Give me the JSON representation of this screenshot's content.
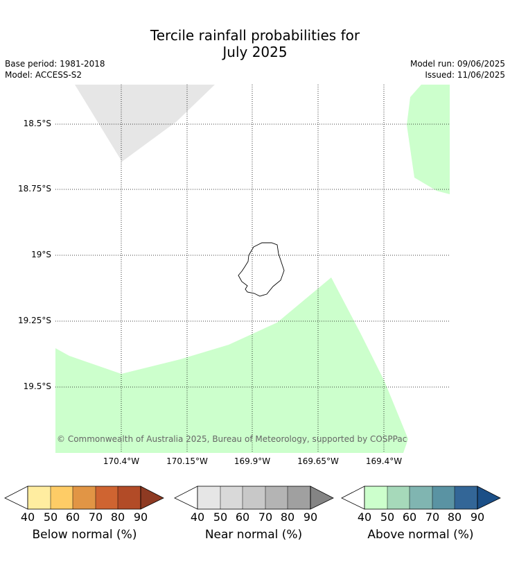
{
  "title": {
    "line1": "Tercile rainfall probabilities for",
    "line2": "July 2025"
  },
  "meta": {
    "base_period": "Base period: 1981-2018",
    "model": "Model: ACCESS-S2",
    "model_run": "Model run: 09/06/2025",
    "issued": "Issued: 11/06/2025"
  },
  "map": {
    "lat_labels": [
      "18.5°S",
      "18.75°S",
      "19°S",
      "19.25°S",
      "19.5°S"
    ],
    "lon_labels": [
      "170.4°W",
      "170.15°W",
      "169.9°W",
      "169.65°W",
      "169.4°W"
    ],
    "copyright": "© Commonwealth of Australia 2025, Bureau of Meteorology, supported by COSPPac",
    "colors": {
      "above_normal_region": "#ccffcc",
      "near_normal_region": "#e6e6e6",
      "grid": "#000000",
      "background": "#ffffff"
    }
  },
  "colorbars": [
    {
      "label": "Below normal (%)",
      "ticks": [
        "40",
        "50",
        "60",
        "70",
        "80",
        "90"
      ],
      "colors": [
        "#ffffff",
        "#ffeda0",
        "#fecc66",
        "#e19545",
        "#cf6431",
        "#b24b27",
        "#8e3a22"
      ]
    },
    {
      "label": "Near normal (%)",
      "ticks": [
        "40",
        "50",
        "60",
        "70",
        "80",
        "90"
      ],
      "colors": [
        "#ffffff",
        "#e6e6e6",
        "#d9d9d9",
        "#c8c8c8",
        "#b4b4b4",
        "#a0a0a0",
        "#848484"
      ]
    },
    {
      "label": "Above normal (%)",
      "ticks": [
        "40",
        "50",
        "60",
        "70",
        "80",
        "90"
      ],
      "colors": [
        "#ffffff",
        "#ccffcc",
        "#a6d9ba",
        "#80b5b1",
        "#5a93a3",
        "#336697",
        "#1b4f87"
      ]
    }
  ]
}
